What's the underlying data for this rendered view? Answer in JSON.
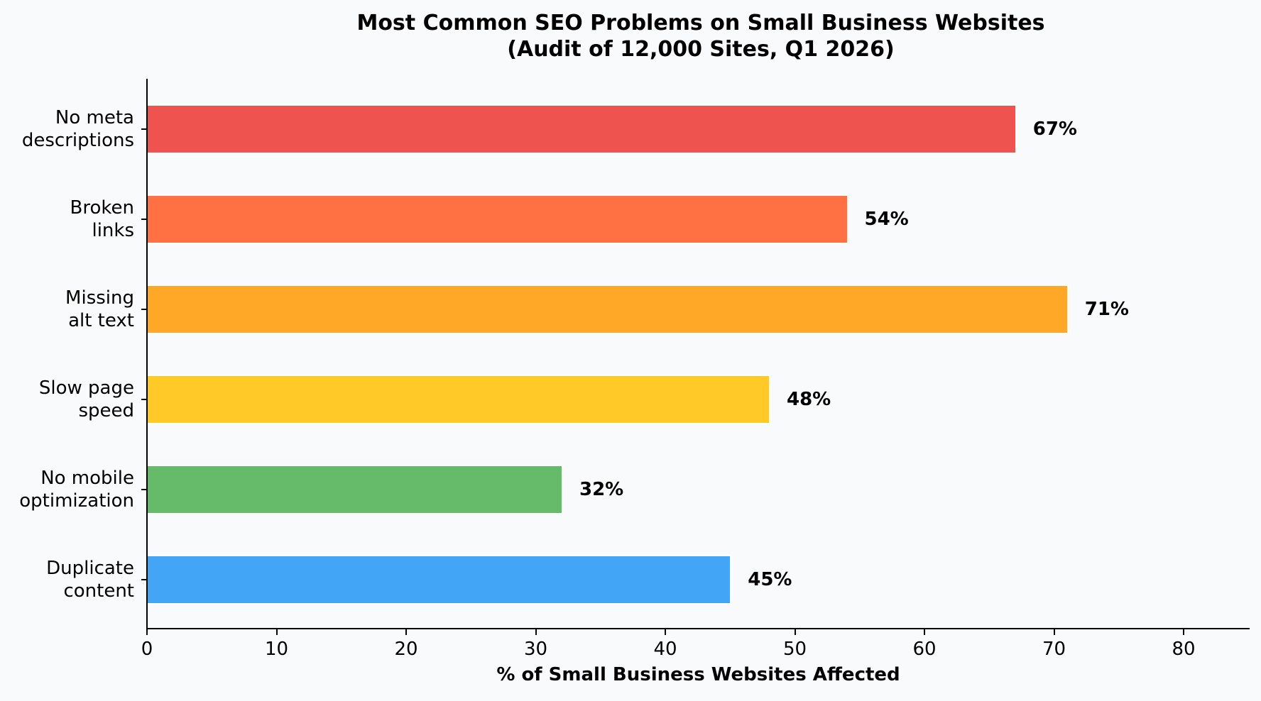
{
  "chart_data": {
    "type": "bar",
    "orientation": "horizontal",
    "title": "Most Common SEO Problems on Small Business Websites\n(Audit of 12,000 Sites, Q1 2026)",
    "title_lines": [
      "Most Common SEO Problems on Small Business Websites",
      "(Audit of 12,000 Sites, Q1 2026)"
    ],
    "xlabel": "% of Small Business Websites Affected",
    "ylabel": "",
    "categories": [
      "No meta descriptions",
      "Broken links",
      "Missing alt text",
      "Slow page speed",
      "No mobile optimization",
      "Duplicate content"
    ],
    "category_lines": [
      [
        "No meta",
        "descriptions"
      ],
      [
        "Broken",
        "links"
      ],
      [
        "Missing",
        "alt text"
      ],
      [
        "Slow page",
        "speed"
      ],
      [
        "No mobile",
        "optimization"
      ],
      [
        "Duplicate",
        "content"
      ]
    ],
    "values": [
      67,
      54,
      71,
      48,
      32,
      45
    ],
    "value_labels": [
      "67%",
      "54%",
      "71%",
      "48%",
      "32%",
      "45%"
    ],
    "colors": [
      "#ef5350",
      "#ff7043",
      "#ffa726",
      "#ffca28",
      "#66bb6a",
      "#42a5f5"
    ],
    "xlim": [
      0,
      85
    ],
    "xticks": [
      0,
      10,
      20,
      30,
      40,
      50,
      60,
      70,
      80
    ],
    "xtick_labels": [
      "0",
      "10",
      "20",
      "30",
      "40",
      "50",
      "60",
      "70",
      "80"
    ],
    "grid": false,
    "legend": null
  }
}
